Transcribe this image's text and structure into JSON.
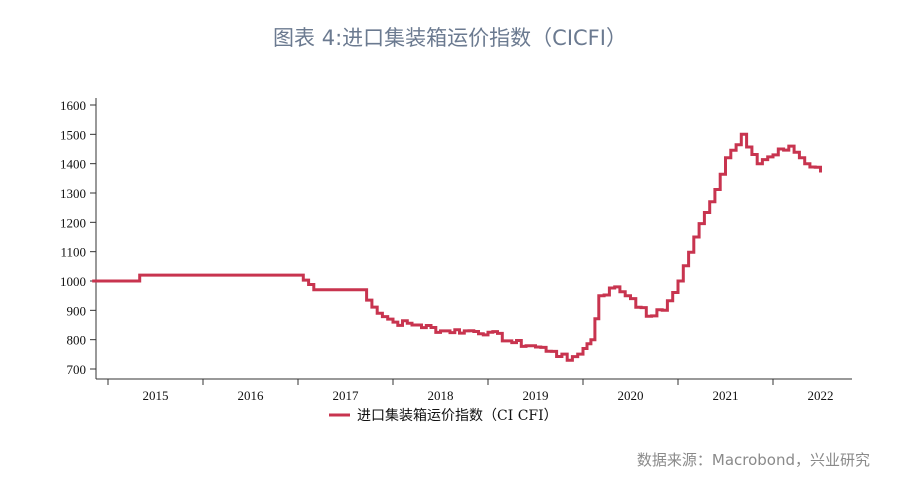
{
  "title": "图表 4:进口集装箱运价指数（CICFI）",
  "source": "数据来源：Macrobond，兴业研究",
  "colors": {
    "line": "#c8344f",
    "axis": "#333333",
    "title": "#6b7a90",
    "source": "#8a8a8a"
  },
  "chart_data": {
    "type": "line",
    "title": "图表 4:进口集装箱运价指数（CICFI）",
    "xlabel": "",
    "ylabel": "",
    "ylim": [
      700,
      1600
    ],
    "yticks": [
      700,
      800,
      900,
      1000,
      1100,
      1200,
      1300,
      1400,
      1500,
      1600
    ],
    "xticks": [
      "2015",
      "2016",
      "2017",
      "2018",
      "2019",
      "2020",
      "2021",
      "2022"
    ],
    "grid": false,
    "legend_position": "bottom",
    "series": [
      {
        "name": "进口集装箱运价指数（CICFI）",
        "x": [
          "2014-11",
          "2015-05",
          "2016-01",
          "2017-01",
          "2017-03",
          "2017-09",
          "2017-11",
          "2018-01",
          "2018-04",
          "2018-07",
          "2018-10",
          "2019-01",
          "2019-04",
          "2019-07",
          "2019-09",
          "2019-11",
          "2020-01",
          "2020-02",
          "2020-03",
          "2020-05",
          "2020-07",
          "2020-09",
          "2020-11",
          "2021-01",
          "2021-03",
          "2021-05",
          "2021-07",
          "2021-09",
          "2021-11",
          "2022-01",
          "2022-03",
          "2022-05",
          "2022-07"
        ],
        "values": [
          1000,
          1020,
          1020,
          1020,
          970,
          970,
          890,
          860,
          850,
          830,
          830,
          825,
          790,
          775,
          760,
          730,
          770,
          800,
          950,
          980,
          940,
          880,
          900,
          1000,
          1150,
          1270,
          1420,
          1500,
          1400,
          1430,
          1460,
          1400,
          1370
        ]
      }
    ]
  },
  "legend": {
    "label": "进口集装箱运价指数（CI CFI）"
  }
}
